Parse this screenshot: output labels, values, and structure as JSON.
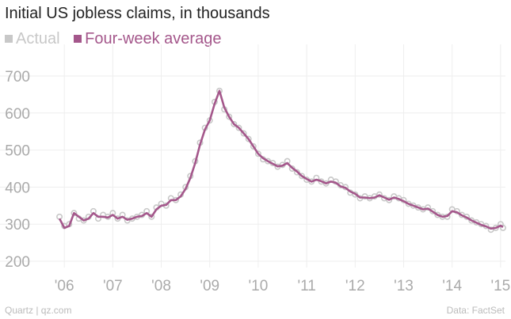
{
  "chart_data": {
    "type": "line",
    "title": "Initial US jobless claims, in thousands",
    "xlabel": "",
    "ylabel": "",
    "ylim": [
      200,
      700
    ],
    "xlim": [
      2005.85,
      2015.1
    ],
    "grid": true,
    "legend_placement": "top-left",
    "y_ticks": [
      "200",
      "300",
      "400",
      "500",
      "600",
      "700"
    ],
    "x_ticks": [
      "'06",
      "'07",
      "'08",
      "'09",
      "'10",
      "'11",
      "'12",
      "'13",
      "'14",
      "'15"
    ],
    "series": [
      {
        "name": "Actual",
        "kind": "scatter",
        "color": "#c8c8c8",
        "x": [
          2005.9,
          2006.0,
          2006.1,
          2006.2,
          2006.3,
          2006.4,
          2006.5,
          2006.6,
          2006.7,
          2006.8,
          2006.9,
          2007.0,
          2007.1,
          2007.2,
          2007.3,
          2007.4,
          2007.5,
          2007.6,
          2007.7,
          2007.8,
          2007.9,
          2008.0,
          2008.1,
          2008.2,
          2008.3,
          2008.4,
          2008.5,
          2008.6,
          2008.7,
          2008.8,
          2008.9,
          2009.0,
          2009.1,
          2009.2,
          2009.3,
          2009.4,
          2009.5,
          2009.6,
          2009.7,
          2009.8,
          2009.9,
          2010.0,
          2010.1,
          2010.2,
          2010.3,
          2010.4,
          2010.5,
          2010.6,
          2010.7,
          2010.8,
          2010.9,
          2011.0,
          2011.1,
          2011.2,
          2011.3,
          2011.4,
          2011.5,
          2011.6,
          2011.7,
          2011.8,
          2011.9,
          2012.0,
          2012.1,
          2012.2,
          2012.3,
          2012.4,
          2012.5,
          2012.6,
          2012.7,
          2012.8,
          2012.9,
          2013.0,
          2013.1,
          2013.2,
          2013.3,
          2013.4,
          2013.5,
          2013.6,
          2013.7,
          2013.8,
          2013.9,
          2014.0,
          2014.1,
          2014.2,
          2014.3,
          2014.4,
          2014.5,
          2014.6,
          2014.7,
          2014.8,
          2014.9,
          2015.0,
          2015.05
        ],
        "values": [
          320,
          295,
          300,
          330,
          315,
          310,
          320,
          335,
          315,
          325,
          320,
          330,
          315,
          325,
          310,
          315,
          320,
          325,
          335,
          320,
          345,
          355,
          350,
          370,
          365,
          380,
          400,
          430,
          470,
          520,
          560,
          580,
          630,
          660,
          610,
          590,
          570,
          560,
          545,
          530,
          510,
          490,
          475,
          470,
          465,
          455,
          460,
          470,
          450,
          440,
          430,
          420,
          415,
          425,
          415,
          410,
          420,
          415,
          405,
          400,
          385,
          380,
          370,
          375,
          370,
          375,
          380,
          370,
          365,
          375,
          370,
          365,
          355,
          350,
          345,
          340,
          345,
          335,
          325,
          320,
          320,
          340,
          335,
          325,
          320,
          310,
          305,
          300,
          295,
          285,
          290,
          300,
          290
        ]
      },
      {
        "name": "Four-week average",
        "kind": "line",
        "color": "#a4578b",
        "x": [
          2005.9,
          2006.0,
          2006.1,
          2006.2,
          2006.3,
          2006.4,
          2006.5,
          2006.6,
          2006.7,
          2006.8,
          2006.9,
          2007.0,
          2007.1,
          2007.2,
          2007.3,
          2007.4,
          2007.5,
          2007.6,
          2007.7,
          2007.8,
          2007.9,
          2008.0,
          2008.1,
          2008.2,
          2008.3,
          2008.4,
          2008.5,
          2008.6,
          2008.7,
          2008.8,
          2008.9,
          2009.0,
          2009.1,
          2009.2,
          2009.3,
          2009.4,
          2009.5,
          2009.6,
          2009.7,
          2009.8,
          2009.9,
          2010.0,
          2010.1,
          2010.2,
          2010.3,
          2010.4,
          2010.5,
          2010.6,
          2010.7,
          2010.8,
          2010.9,
          2011.0,
          2011.1,
          2011.2,
          2011.3,
          2011.4,
          2011.5,
          2011.6,
          2011.7,
          2011.8,
          2011.9,
          2012.0,
          2012.1,
          2012.2,
          2012.3,
          2012.4,
          2012.5,
          2012.6,
          2012.7,
          2012.8,
          2012.9,
          2013.0,
          2013.1,
          2013.2,
          2013.3,
          2013.4,
          2013.5,
          2013.6,
          2013.7,
          2013.8,
          2013.9,
          2014.0,
          2014.1,
          2014.2,
          2014.3,
          2014.4,
          2014.5,
          2014.6,
          2014.7,
          2014.8,
          2014.9,
          2015.0,
          2015.05
        ],
        "values": [
          315,
          290,
          295,
          330,
          320,
          310,
          315,
          330,
          320,
          320,
          318,
          325,
          315,
          320,
          312,
          315,
          320,
          322,
          330,
          320,
          340,
          350,
          352,
          365,
          365,
          375,
          395,
          425,
          465,
          515,
          555,
          580,
          625,
          660,
          615,
          590,
          570,
          560,
          545,
          530,
          510,
          490,
          478,
          470,
          463,
          456,
          458,
          465,
          452,
          442,
          430,
          422,
          415,
          420,
          416,
          410,
          415,
          412,
          402,
          398,
          388,
          382,
          372,
          372,
          370,
          372,
          378,
          372,
          366,
          372,
          368,
          362,
          355,
          350,
          345,
          340,
          342,
          334,
          325,
          320,
          322,
          335,
          332,
          324,
          318,
          310,
          304,
          298,
          294,
          288,
          290,
          296,
          292
        ]
      }
    ]
  },
  "footer": {
    "source_left": "Quartz | qz.com",
    "source_right": "Data: FactSet"
  }
}
